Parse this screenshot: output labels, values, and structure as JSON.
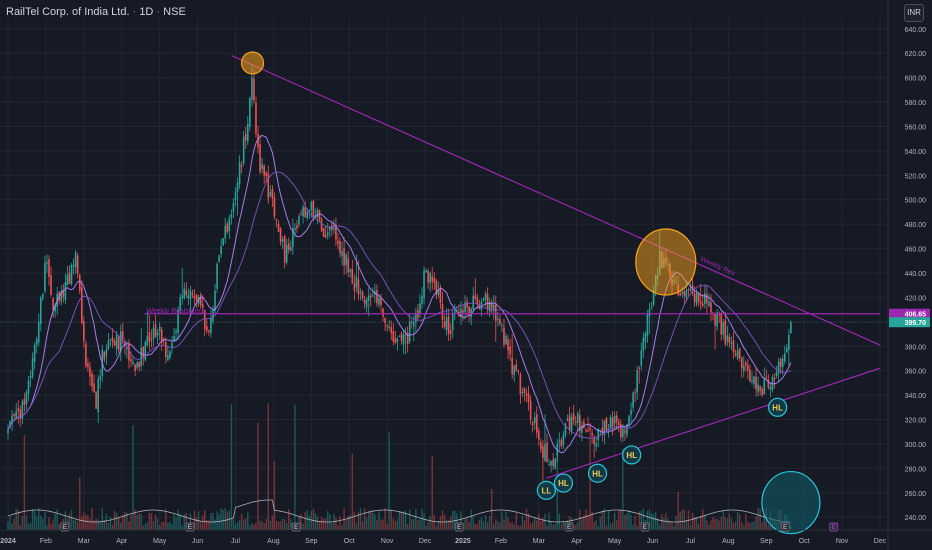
{
  "header": {
    "symbol_title": "RailTel Corp. of India Ltd.",
    "interval": "1D",
    "exchange": "NSE",
    "currency_button": "INR"
  },
  "colors": {
    "background": "#161a25",
    "grid": "#222631",
    "up_candle": "#26a69a",
    "down_candle": "#ef5350",
    "trendline": "#9c27b0",
    "ma_fast": "#b388ff",
    "ma_slow": "#7e57c2",
    "highlight_orange": "#f7a21b",
    "highlight_cyan": "#26c6da"
  },
  "chart_data": {
    "type": "candlestick",
    "title": "",
    "y_axis": {
      "ticks": [
        240,
        260,
        280,
        300,
        320,
        340,
        360,
        380,
        400,
        420,
        440,
        460,
        480,
        500,
        520,
        540,
        560,
        580,
        600,
        620,
        640
      ],
      "range": [
        232,
        648
      ],
      "last_price_label": "399.70",
      "resistance_label": "406.65"
    },
    "x_axis": {
      "labels": [
        "2024",
        "Feb",
        "Mar",
        "Apr",
        "May",
        "Jun",
        "Jul",
        "Aug",
        "Sep",
        "Oct",
        "Nov",
        "Dec",
        "2025",
        "Feb",
        "Mar",
        "Apr",
        "May",
        "Jun",
        "Jul",
        "Aug",
        "Sep",
        "Oct",
        "Nov",
        "Dec"
      ],
      "bold_labels": [
        "2024",
        "2025"
      ],
      "month_index_range": [
        0,
        23
      ]
    },
    "price_path_keypoints": [
      [
        0,
        310
      ],
      [
        0.4,
        330
      ],
      [
        0.8,
        395
      ],
      [
        1.0,
        455
      ],
      [
        1.2,
        410
      ],
      [
        1.5,
        430
      ],
      [
        1.8,
        450
      ],
      [
        2.0,
        380
      ],
      [
        2.3,
        330
      ],
      [
        2.5,
        375
      ],
      [
        3.0,
        385
      ],
      [
        3.4,
        360
      ],
      [
        3.7,
        390
      ],
      [
        4.0,
        390
      ],
      [
        4.3,
        370
      ],
      [
        4.6,
        430
      ],
      [
        5.0,
        420
      ],
      [
        5.3,
        390
      ],
      [
        5.6,
        460
      ],
      [
        6.0,
        505
      ],
      [
        6.3,
        560
      ],
      [
        6.45,
        600
      ],
      [
        6.6,
        535
      ],
      [
        7.0,
        495
      ],
      [
        7.3,
        455
      ],
      [
        7.6,
        480
      ],
      [
        8.0,
        495
      ],
      [
        8.3,
        475
      ],
      [
        8.6,
        470
      ],
      [
        9.0,
        445
      ],
      [
        9.3,
        420
      ],
      [
        9.7,
        425
      ],
      [
        10.0,
        400
      ],
      [
        10.4,
        380
      ],
      [
        10.8,
        405
      ],
      [
        11.0,
        445
      ],
      [
        11.3,
        425
      ],
      [
        11.6,
        395
      ],
      [
        12.0,
        410
      ],
      [
        12.3,
        415
      ],
      [
        12.6,
        420
      ],
      [
        13.0,
        395
      ],
      [
        13.3,
        365
      ],
      [
        13.6,
        340
      ],
      [
        13.9,
        315
      ],
      [
        14.1,
        295
      ],
      [
        14.4,
        285
      ],
      [
        14.7,
        315
      ],
      [
        15.0,
        320
      ],
      [
        15.3,
        305
      ],
      [
        15.6,
        310
      ],
      [
        15.9,
        318
      ],
      [
        16.2,
        310
      ],
      [
        16.5,
        340
      ],
      [
        16.8,
        390
      ],
      [
        17.0,
        420
      ],
      [
        17.2,
        455
      ],
      [
        17.35,
        445
      ],
      [
        17.6,
        430
      ],
      [
        17.9,
        425
      ],
      [
        18.2,
        420
      ],
      [
        18.5,
        415
      ],
      [
        18.8,
        395
      ],
      [
        19.1,
        380
      ],
      [
        19.4,
        360
      ],
      [
        19.6,
        350
      ],
      [
        19.9,
        345
      ],
      [
        20.1,
        350
      ],
      [
        20.3,
        360
      ],
      [
        20.5,
        375
      ],
      [
        20.65,
        399.7
      ]
    ],
    "series": [
      {
        "name": "",
        "style": "line",
        "description_role": "moving-average"
      },
      {
        "name": "",
        "style": "line",
        "description_role": "moving-average"
      }
    ],
    "trendlines": [
      {
        "role": "descending",
        "label": "Weekly Res",
        "from": [
          5.9,
          618
        ],
        "to": [
          23.0,
          381
        ]
      },
      {
        "role": "ascending",
        "label": "",
        "from": [
          14.2,
          272
        ],
        "to": [
          23.0,
          362
        ]
      },
      {
        "role": "horizontal",
        "label": "Weekly Resistance",
        "from": [
          3.6,
          406.65
        ],
        "to": [
          23.0,
          406.65
        ]
      }
    ],
    "markers": [
      {
        "label": "LL",
        "x": 14.2,
        "y": 262
      },
      {
        "label": "HL",
        "x": 14.65,
        "y": 268
      },
      {
        "label": "HL",
        "x": 15.55,
        "y": 276
      },
      {
        "label": "HL",
        "x": 16.45,
        "y": 291
      },
      {
        "label": "HL",
        "x": 20.3,
        "y": 330
      }
    ],
    "highlights": [
      {
        "color": "orange",
        "x": 6.45,
        "y": 612
      },
      {
        "color": "orange",
        "x": 17.35,
        "y": 449
      },
      {
        "color": "cyan",
        "x": 20.65,
        "y": 252
      }
    ],
    "volume_event_markers": [
      "E",
      "E",
      "E",
      "E",
      "E",
      "E",
      "E",
      "E"
    ],
    "upcoming_event_marker": "E"
  }
}
